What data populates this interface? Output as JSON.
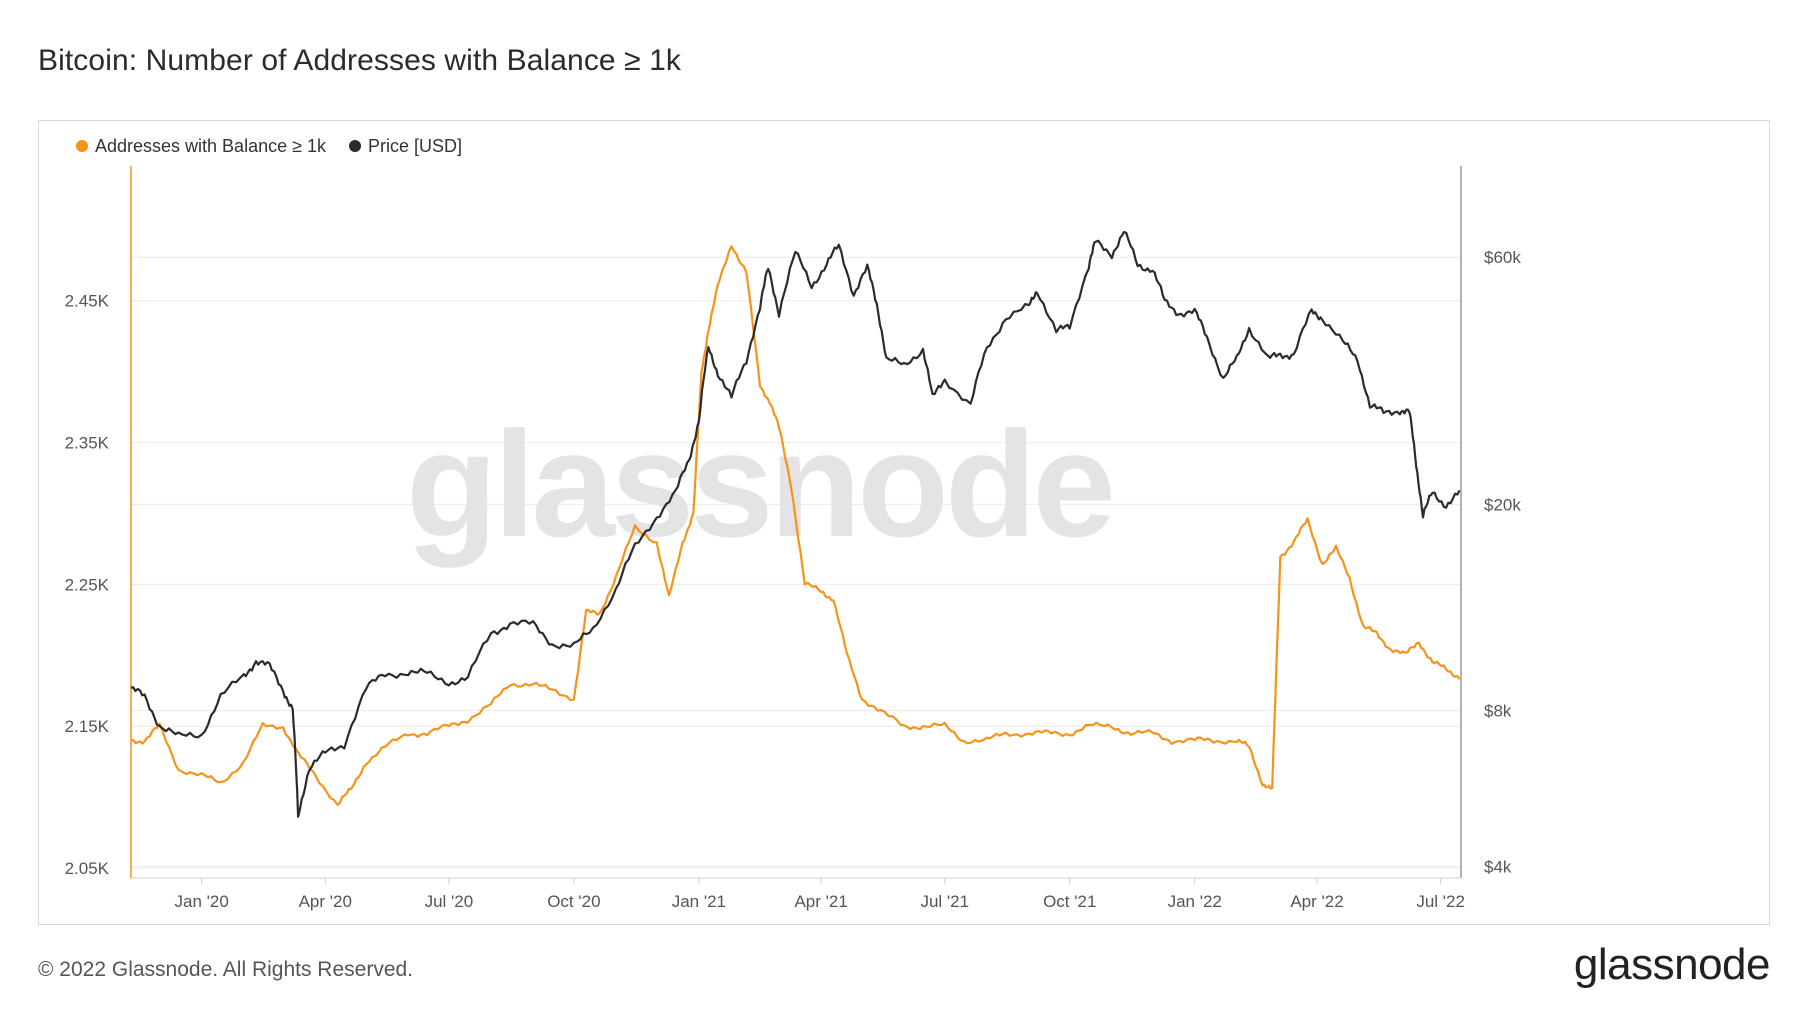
{
  "title": "Bitcoin: Number of Addresses with Balance ≥ 1k",
  "footer": "© 2022 Glassnode. All Rights Reserved.",
  "brand": "glassnode",
  "watermark": "glassnode",
  "chart_data": {
    "type": "line",
    "title": "Bitcoin: Number of Addresses with Balance ≥ 1k",
    "x_tick_labels": [
      "Jan '20",
      "Apr '20",
      "Jul '20",
      "Oct '20",
      "Jan '21",
      "Apr '21",
      "Jul '21",
      "Oct '21",
      "Jan '22",
      "Apr '22",
      "Jul '22"
    ],
    "x_ticks": [
      "2020-01-01",
      "2020-04-01",
      "2020-07-01",
      "2020-10-01",
      "2021-01-01",
      "2021-04-01",
      "2021-07-01",
      "2021-10-01",
      "2022-01-01",
      "2022-04-01",
      "2022-07-01"
    ],
    "xlim": [
      "2019-11-10",
      "2022-07-16"
    ],
    "left_axis": {
      "label": "Addresses with Balance ≥ 1k",
      "ticks": [
        2050,
        2150,
        2250,
        2350,
        2450
      ],
      "tick_labels": [
        "2.05K",
        "2.15K",
        "2.25K",
        "2.35K",
        "2.45K"
      ],
      "ylim": [
        2043,
        2545
      ]
    },
    "right_axis": {
      "label": "Price [USD]",
      "scale": "log",
      "ticks": [
        4000,
        8000,
        20000,
        60000
      ],
      "tick_labels": [
        "$4k",
        "$8k",
        "$20k",
        "$60k"
      ],
      "ylim": [
        3800,
        90000
      ]
    },
    "legend": [
      {
        "name": "Addresses with Balance ≥ 1k",
        "color": "#f7931a"
      },
      {
        "name": "Price [USD]",
        "color": "#2b2b2b"
      }
    ],
    "series": [
      {
        "name": "Addresses with Balance ≥ 1k",
        "axis": "left",
        "color": "#f7931a",
        "x": [
          "2019-11-10",
          "2019-11-20",
          "2019-12-01",
          "2019-12-15",
          "2020-01-01",
          "2020-01-15",
          "2020-02-01",
          "2020-02-15",
          "2020-03-01",
          "2020-03-12",
          "2020-03-25",
          "2020-04-10",
          "2020-04-20",
          "2020-05-01",
          "2020-05-15",
          "2020-06-01",
          "2020-06-15",
          "2020-07-01",
          "2020-07-15",
          "2020-08-01",
          "2020-08-15",
          "2020-09-01",
          "2020-09-15",
          "2020-10-01",
          "2020-10-10",
          "2020-10-20",
          "2020-11-01",
          "2020-11-15",
          "2020-12-01",
          "2020-12-10",
          "2020-12-20",
          "2020-12-28",
          "2021-01-03",
          "2021-01-08",
          "2021-01-15",
          "2021-01-25",
          "2021-02-05",
          "2021-02-15",
          "2021-02-22",
          "2021-03-01",
          "2021-03-10",
          "2021-03-20",
          "2021-04-01",
          "2021-04-10",
          "2021-04-20",
          "2021-05-01",
          "2021-05-15",
          "2021-06-01",
          "2021-06-15",
          "2021-07-01",
          "2021-07-15",
          "2021-08-01",
          "2021-08-15",
          "2021-09-01",
          "2021-09-15",
          "2021-10-01",
          "2021-10-15",
          "2021-11-01",
          "2021-11-15",
          "2021-12-01",
          "2021-12-15",
          "2022-01-01",
          "2022-01-15",
          "2022-02-01",
          "2022-02-10",
          "2022-02-20",
          "2022-02-27",
          "2022-03-05",
          "2022-03-15",
          "2022-03-25",
          "2022-04-05",
          "2022-04-15",
          "2022-04-25",
          "2022-05-05",
          "2022-05-15",
          "2022-05-25",
          "2022-06-05",
          "2022-06-15",
          "2022-06-25",
          "2022-07-05",
          "2022-07-15"
        ],
        "values": [
          2140,
          2140,
          2150,
          2120,
          2115,
          2110,
          2125,
          2150,
          2150,
          2130,
          2115,
          2095,
          2105,
          2125,
          2135,
          2145,
          2145,
          2150,
          2155,
          2165,
          2180,
          2180,
          2175,
          2170,
          2230,
          2230,
          2255,
          2290,
          2280,
          2240,
          2280,
          2300,
          2400,
          2430,
          2460,
          2490,
          2470,
          2390,
          2380,
          2360,
          2320,
          2250,
          2245,
          2240,
          2200,
          2170,
          2160,
          2150,
          2150,
          2150,
          2140,
          2140,
          2145,
          2145,
          2145,
          2145,
          2150,
          2150,
          2145,
          2145,
          2140,
          2140,
          2140,
          2140,
          2135,
          2110,
          2105,
          2270,
          2280,
          2295,
          2265,
          2275,
          2255,
          2220,
          2215,
          2205,
          2200,
          2210,
          2195,
          2190,
          2185
        ]
      },
      {
        "name": "Price [USD]",
        "axis": "right",
        "color": "#2b2b2b",
        "x": [
          "2019-11-10",
          "2019-11-20",
          "2019-12-01",
          "2019-12-15",
          "2020-01-01",
          "2020-01-15",
          "2020-02-01",
          "2020-02-10",
          "2020-02-20",
          "2020-03-01",
          "2020-03-08",
          "2020-03-12",
          "2020-03-20",
          "2020-04-01",
          "2020-04-15",
          "2020-05-01",
          "2020-05-15",
          "2020-06-01",
          "2020-06-15",
          "2020-07-01",
          "2020-07-15",
          "2020-08-01",
          "2020-08-15",
          "2020-09-01",
          "2020-09-15",
          "2020-10-01",
          "2020-10-15",
          "2020-11-01",
          "2020-11-15",
          "2020-12-01",
          "2020-12-15",
          "2020-12-25",
          "2021-01-01",
          "2021-01-08",
          "2021-01-15",
          "2021-01-25",
          "2021-02-05",
          "2021-02-15",
          "2021-02-21",
          "2021-03-01",
          "2021-03-13",
          "2021-03-25",
          "2021-04-05",
          "2021-04-14",
          "2021-04-25",
          "2021-05-05",
          "2021-05-12",
          "2021-05-19",
          "2021-06-01",
          "2021-06-15",
          "2021-06-22",
          "2021-07-01",
          "2021-07-20",
          "2021-08-01",
          "2021-08-15",
          "2021-09-01",
          "2021-09-07",
          "2021-09-21",
          "2021-10-01",
          "2021-10-15",
          "2021-10-20",
          "2021-11-01",
          "2021-11-10",
          "2021-11-20",
          "2021-12-01",
          "2021-12-10",
          "2021-12-20",
          "2022-01-01",
          "2022-01-10",
          "2022-01-22",
          "2022-02-01",
          "2022-02-10",
          "2022-02-24",
          "2022-03-05",
          "2022-03-15",
          "2022-03-28",
          "2022-04-05",
          "2022-04-20",
          "2022-05-01",
          "2022-05-10",
          "2022-05-20",
          "2022-06-01",
          "2022-06-08",
          "2022-06-13",
          "2022-06-18",
          "2022-06-25",
          "2022-07-05",
          "2022-07-15"
        ],
        "values": [
          8800,
          8500,
          7500,
          7100,
          7200,
          8500,
          9300,
          10000,
          9700,
          8800,
          8000,
          5000,
          6200,
          6600,
          6900,
          8800,
          9400,
          9500,
          9400,
          9100,
          9200,
          11300,
          11800,
          11700,
          10800,
          10600,
          11500,
          13700,
          16500,
          19000,
          21000,
          24500,
          29000,
          40000,
          36000,
          32000,
          38000,
          48000,
          57000,
          47000,
          61000,
          53000,
          58000,
          63000,
          51000,
          57000,
          49000,
          38000,
          37000,
          40000,
          32000,
          35000,
          31000,
          40000,
          46000,
          48000,
          52000,
          43000,
          44000,
          58000,
          64000,
          61000,
          67000,
          58000,
          57000,
          49000,
          47000,
          47000,
          42000,
          35000,
          38000,
          44000,
          38000,
          39000,
          39000,
          47000,
          46000,
          41000,
          38000,
          31000,
          30000,
          30500,
          30000,
          24000,
          19000,
          21000,
          20000,
          21000
        ]
      }
    ]
  }
}
